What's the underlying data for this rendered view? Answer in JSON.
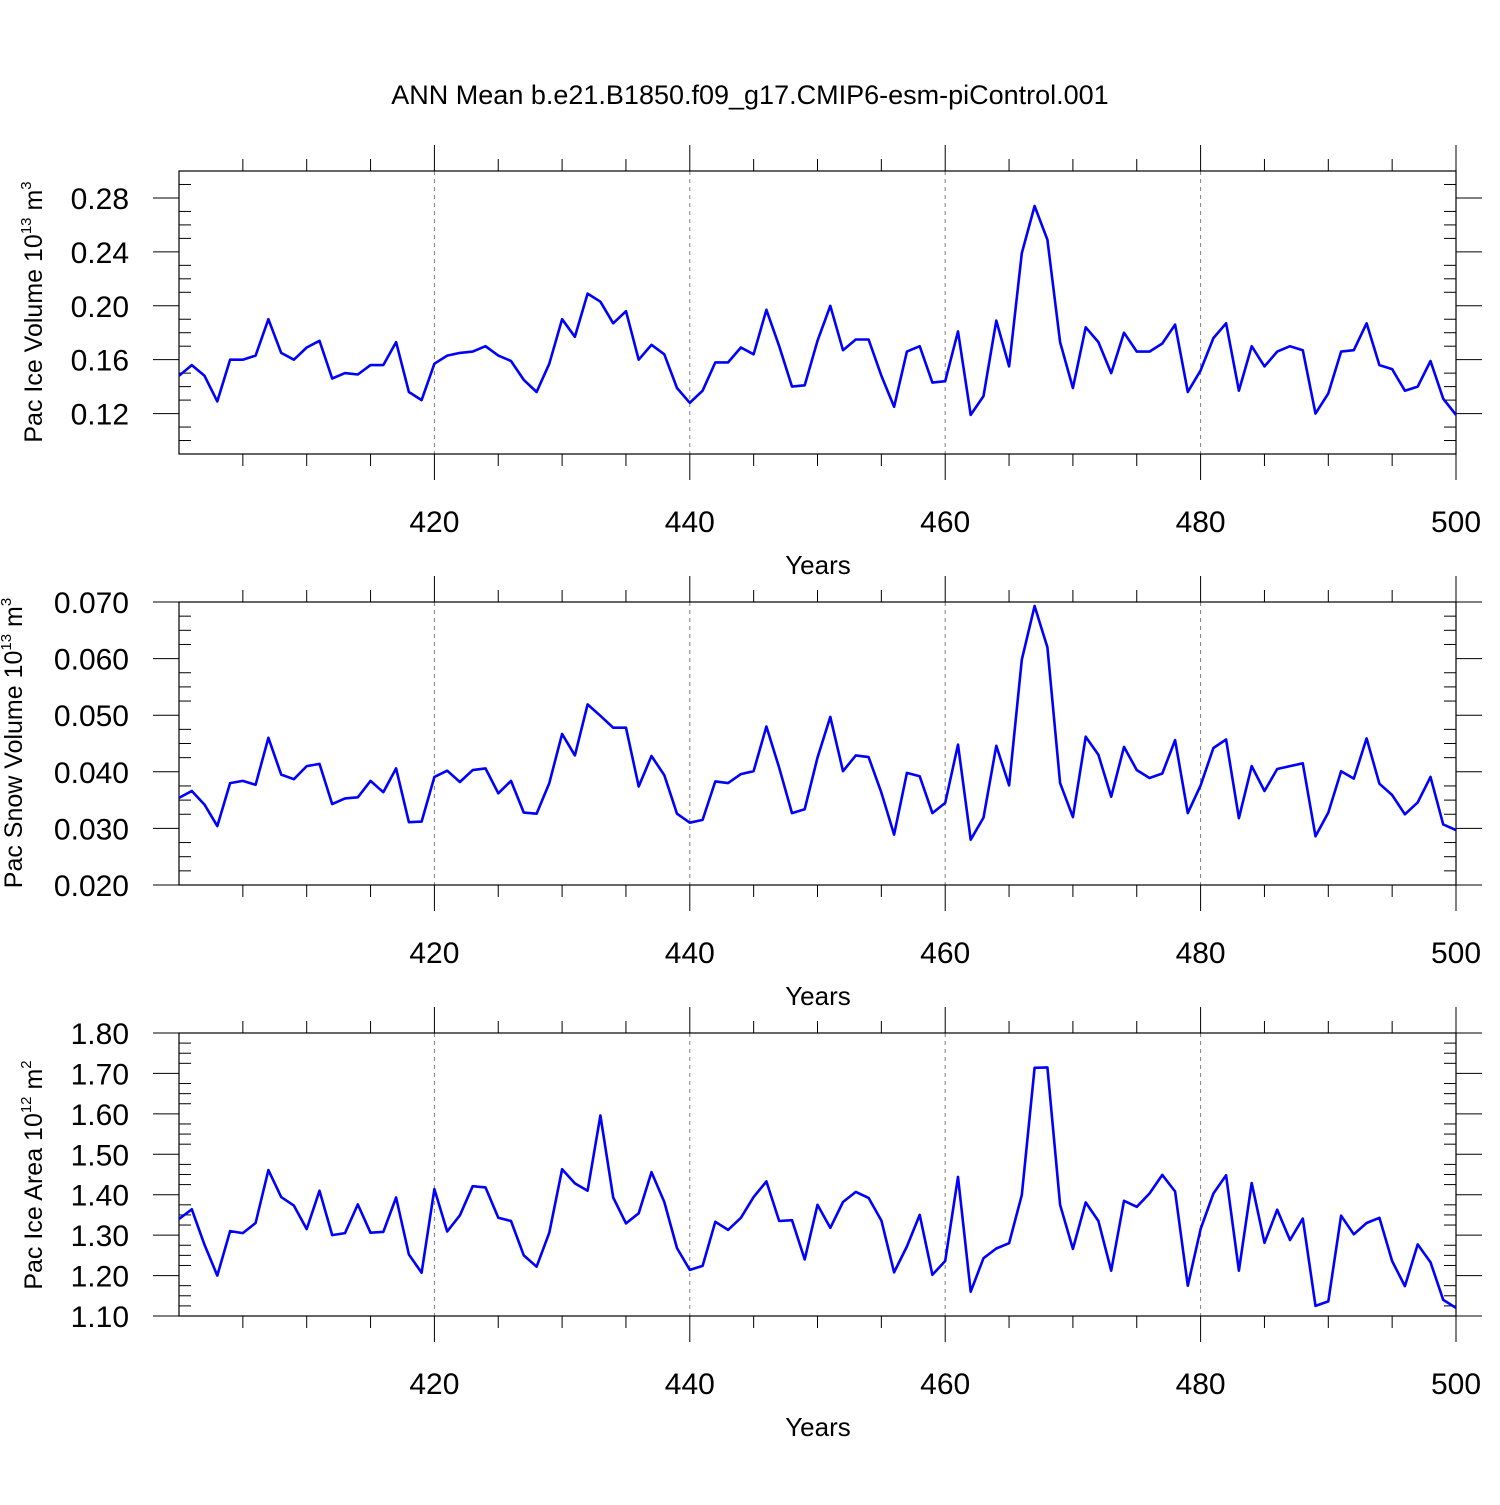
{
  "title": "ANN Mean b.e21.B1850.f09_g17.CMIP6-esm-piControl.001",
  "colors": {
    "line": "#0000ff",
    "axis": "#000000",
    "grid": "#808080"
  },
  "chart_data": [
    {
      "type": "line",
      "ylabel": {
        "text": "Pac Ice Volume 10",
        "sup": "13",
        "unit": " m",
        "unit_sup": "3"
      },
      "xlabel": "Years",
      "xlim": [
        400,
        500
      ],
      "ylim": [
        0.09,
        0.3
      ],
      "grid": "vertical dashed at major x ticks",
      "xticks": [
        420,
        440,
        460,
        480,
        500
      ],
      "xtick_labels": [
        "420",
        "440",
        "460",
        "480",
        "500"
      ],
      "yticks": [
        0.12,
        0.16,
        0.2,
        0.24,
        0.28
      ],
      "ytick_labels": [
        "0.12",
        "0.16",
        "0.20",
        "0.24",
        "0.28"
      ],
      "x": [
        400,
        401,
        402,
        403,
        404,
        405,
        406,
        407,
        408,
        409,
        410,
        411,
        412,
        413,
        414,
        415,
        416,
        417,
        418,
        419,
        420,
        421,
        422,
        423,
        424,
        425,
        426,
        427,
        428,
        429,
        430,
        431,
        432,
        433,
        434,
        435,
        436,
        437,
        438,
        439,
        440,
        441,
        442,
        443,
        444,
        445,
        446,
        447,
        448,
        449,
        450,
        451,
        452,
        453,
        454,
        455,
        456,
        457,
        458,
        459,
        460,
        461,
        462,
        463,
        464,
        465,
        466,
        467,
        468,
        469,
        470,
        471,
        472,
        473,
        474,
        475,
        476,
        477,
        478,
        479,
        480,
        481,
        482,
        483,
        484,
        485,
        486,
        487,
        488,
        489,
        490,
        491,
        492,
        493,
        494,
        495,
        496,
        497,
        498,
        499,
        500
      ],
      "values": [
        0.148,
        0.156,
        0.148,
        0.129,
        0.16,
        0.16,
        0.163,
        0.19,
        0.165,
        0.16,
        0.169,
        0.174,
        0.146,
        0.15,
        0.149,
        0.156,
        0.156,
        0.173,
        0.136,
        0.13,
        0.157,
        0.163,
        0.165,
        0.166,
        0.17,
        0.163,
        0.159,
        0.145,
        0.136,
        0.157,
        0.19,
        0.177,
        0.209,
        0.203,
        0.187,
        0.196,
        0.16,
        0.171,
        0.164,
        0.139,
        0.128,
        0.137,
        0.158,
        0.158,
        0.169,
        0.164,
        0.197,
        0.17,
        0.14,
        0.141,
        0.174,
        0.2,
        0.167,
        0.175,
        0.175,
        0.148,
        0.125,
        0.166,
        0.17,
        0.143,
        0.144,
        0.181,
        0.119,
        0.133,
        0.189,
        0.155,
        0.239,
        0.274,
        0.249,
        0.173,
        0.139,
        0.184,
        0.173,
        0.15,
        0.18,
        0.166,
        0.166,
        0.172,
        0.186,
        0.136,
        0.152,
        0.176,
        0.187,
        0.137,
        0.17,
        0.155,
        0.166,
        0.17,
        0.167,
        0.12,
        0.135,
        0.166,
        0.167,
        0.187,
        0.156,
        0.153,
        0.137,
        0.14,
        0.159,
        0.131,
        0.119
      ]
    },
    {
      "type": "line",
      "ylabel": {
        "text": "Pac Snow Volume 10",
        "sup": "13",
        "unit": " m",
        "unit_sup": "3"
      },
      "xlabel": "Years",
      "xlim": [
        400,
        500
      ],
      "ylim": [
        0.02,
        0.07
      ],
      "grid": "vertical dashed at major x ticks",
      "xticks": [
        420,
        440,
        460,
        480,
        500
      ],
      "xtick_labels": [
        "420",
        "440",
        "460",
        "480",
        "500"
      ],
      "yticks": [
        0.02,
        0.03,
        0.04,
        0.05,
        0.06,
        0.07
      ],
      "ytick_labels": [
        "0.020",
        "0.030",
        "0.040",
        "0.050",
        "0.060",
        "0.070"
      ],
      "x": [
        400,
        401,
        402,
        403,
        404,
        405,
        406,
        407,
        408,
        409,
        410,
        411,
        412,
        413,
        414,
        415,
        416,
        417,
        418,
        419,
        420,
        421,
        422,
        423,
        424,
        425,
        426,
        427,
        428,
        429,
        430,
        431,
        432,
        433,
        434,
        435,
        436,
        437,
        438,
        439,
        440,
        441,
        442,
        443,
        444,
        445,
        446,
        447,
        448,
        449,
        450,
        451,
        452,
        453,
        454,
        455,
        456,
        457,
        458,
        459,
        460,
        461,
        462,
        463,
        464,
        465,
        466,
        467,
        468,
        469,
        470,
        471,
        472,
        473,
        474,
        475,
        476,
        477,
        478,
        479,
        480,
        481,
        482,
        483,
        484,
        485,
        486,
        487,
        488,
        489,
        490,
        491,
        492,
        493,
        494,
        495,
        496,
        497,
        498,
        499,
        500
      ],
      "values": [
        0.0354,
        0.0366,
        0.0342,
        0.0304,
        0.038,
        0.0384,
        0.0377,
        0.046,
        0.0395,
        0.0387,
        0.041,
        0.0414,
        0.0343,
        0.0353,
        0.0355,
        0.0384,
        0.0364,
        0.0406,
        0.0311,
        0.0312,
        0.0391,
        0.0402,
        0.0382,
        0.0403,
        0.0406,
        0.0362,
        0.0384,
        0.0328,
        0.0326,
        0.038,
        0.0467,
        0.0429,
        0.0519,
        0.0499,
        0.0478,
        0.0478,
        0.0374,
        0.0428,
        0.0394,
        0.0326,
        0.031,
        0.0315,
        0.0383,
        0.038,
        0.0396,
        0.0401,
        0.048,
        0.0407,
        0.0327,
        0.0334,
        0.0425,
        0.0497,
        0.0401,
        0.0429,
        0.0426,
        0.0363,
        0.0289,
        0.0398,
        0.0392,
        0.0327,
        0.0345,
        0.0448,
        0.028,
        0.0319,
        0.0446,
        0.0376,
        0.0598,
        0.0693,
        0.062,
        0.038,
        0.032,
        0.0462,
        0.043,
        0.0356,
        0.0444,
        0.0403,
        0.0389,
        0.0397,
        0.0456,
        0.0327,
        0.0376,
        0.0442,
        0.0457,
        0.0318,
        0.041,
        0.0366,
        0.0405,
        0.041,
        0.0415,
        0.0286,
        0.0328,
        0.0401,
        0.0388,
        0.0459,
        0.0379,
        0.0359,
        0.0325,
        0.0346,
        0.0391,
        0.0307,
        0.0297
      ]
    },
    {
      "type": "line",
      "ylabel": {
        "text": "Pac Ice Area 10",
        "sup": "12",
        "unit": " m",
        "unit_sup": "2"
      },
      "xlabel": "Years",
      "xlim": [
        400,
        500
      ],
      "ylim": [
        1.1,
        1.8
      ],
      "grid": "vertical dashed at major x ticks",
      "xticks": [
        420,
        440,
        460,
        480,
        500
      ],
      "xtick_labels": [
        "420",
        "440",
        "460",
        "480",
        "500"
      ],
      "yticks": [
        1.1,
        1.2,
        1.3,
        1.4,
        1.5,
        1.6,
        1.7,
        1.8
      ],
      "ytick_labels": [
        "1.10",
        "1.20",
        "1.30",
        "1.40",
        "1.50",
        "1.60",
        "1.70",
        "1.80"
      ],
      "x": [
        400,
        401,
        402,
        403,
        404,
        405,
        406,
        407,
        408,
        409,
        410,
        411,
        412,
        413,
        414,
        415,
        416,
        417,
        418,
        419,
        420,
        421,
        422,
        423,
        424,
        425,
        426,
        427,
        428,
        429,
        430,
        431,
        432,
        433,
        434,
        435,
        436,
        437,
        438,
        439,
        440,
        441,
        442,
        443,
        444,
        445,
        446,
        447,
        448,
        449,
        450,
        451,
        452,
        453,
        454,
        455,
        456,
        457,
        458,
        459,
        460,
        461,
        462,
        463,
        464,
        465,
        466,
        467,
        468,
        469,
        470,
        471,
        472,
        473,
        474,
        475,
        476,
        477,
        478,
        479,
        480,
        481,
        482,
        483,
        484,
        485,
        486,
        487,
        488,
        489,
        490,
        491,
        492,
        493,
        494,
        495,
        496,
        497,
        498,
        499,
        500
      ],
      "values": [
        1.34,
        1.364,
        1.276,
        1.2,
        1.31,
        1.305,
        1.33,
        1.461,
        1.394,
        1.373,
        1.315,
        1.41,
        1.3,
        1.305,
        1.376,
        1.306,
        1.308,
        1.393,
        1.252,
        1.207,
        1.414,
        1.309,
        1.349,
        1.421,
        1.418,
        1.343,
        1.335,
        1.25,
        1.222,
        1.306,
        1.463,
        1.428,
        1.41,
        1.596,
        1.393,
        1.329,
        1.354,
        1.456,
        1.382,
        1.268,
        1.214,
        1.224,
        1.333,
        1.313,
        1.343,
        1.394,
        1.433,
        1.335,
        1.337,
        1.24,
        1.375,
        1.318,
        1.382,
        1.407,
        1.392,
        1.336,
        1.208,
        1.272,
        1.35,
        1.202,
        1.236,
        1.444,
        1.16,
        1.243,
        1.267,
        1.28,
        1.399,
        1.714,
        1.715,
        1.375,
        1.266,
        1.381,
        1.335,
        1.212,
        1.385,
        1.37,
        1.403,
        1.449,
        1.408,
        1.175,
        1.315,
        1.403,
        1.448,
        1.212,
        1.429,
        1.281,
        1.363,
        1.288,
        1.341,
        1.125,
        1.136,
        1.348,
        1.302,
        1.33,
        1.343,
        1.236,
        1.174,
        1.277,
        1.233,
        1.14,
        1.12
      ]
    }
  ]
}
